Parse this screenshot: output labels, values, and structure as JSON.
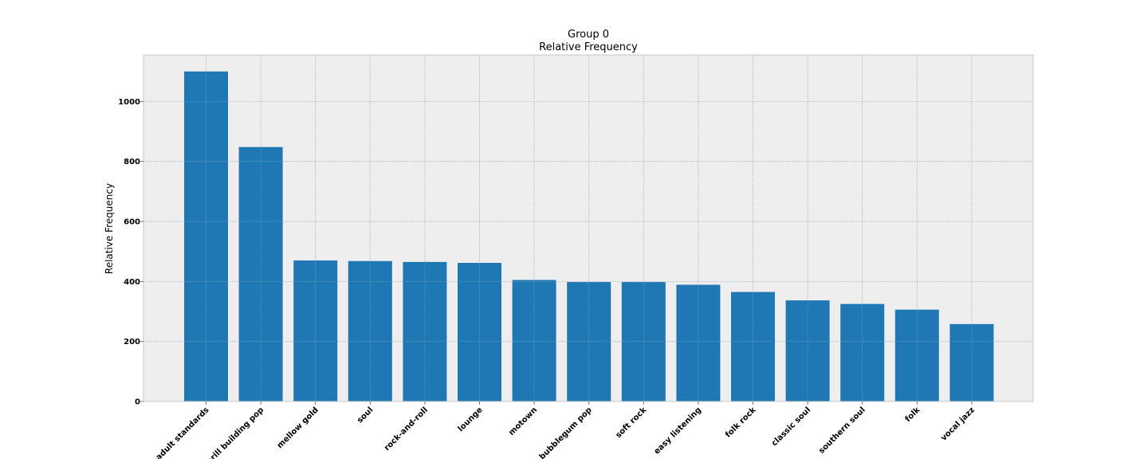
{
  "chart_data": {
    "type": "bar",
    "title": "Group 0",
    "subtitle": "Relative Frequency",
    "xlabel": "",
    "ylabel": "Relative Frequency",
    "ylim": [
      0,
      1155
    ],
    "yticks": [
      0,
      200,
      400,
      600,
      800,
      1000
    ],
    "grid": true,
    "legend": "none",
    "colors": {
      "bar": "#1f77b4",
      "plot_background": "#eeeeee",
      "grid": "#c8c8c8",
      "frame": "#c8c8c8"
    },
    "categories": [
      "adult standards",
      "brill building pop",
      "mellow gold",
      "soul",
      "rock-and-roll",
      "lounge",
      "motown",
      "bubblegum pop",
      "soft rock",
      "easy listening",
      "folk rock",
      "classic soul",
      "southern soul",
      "folk",
      "vocal jazz"
    ],
    "values": [
      1100,
      848,
      470,
      468,
      465,
      462,
      405,
      398,
      398,
      389,
      365,
      337,
      325,
      306,
      258
    ]
  }
}
